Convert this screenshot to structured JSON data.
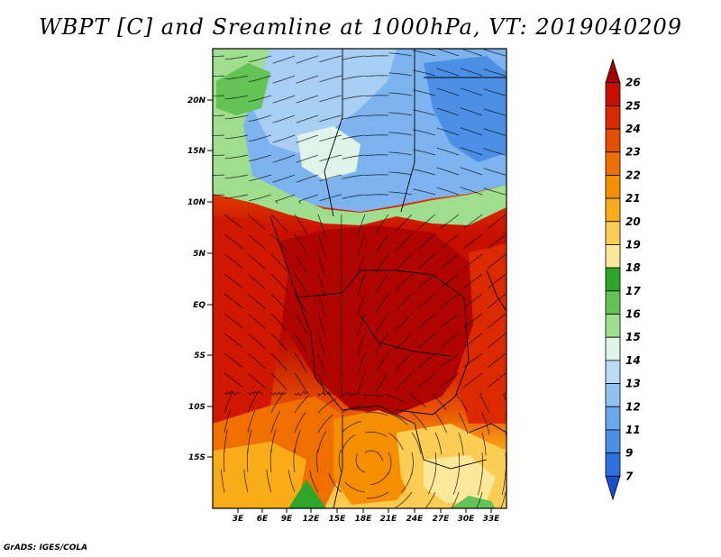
{
  "title": "WBPT [C] and Sreamline at 1000hPa, VT: 2019040209",
  "footer": "GrADS: IGES/COLA",
  "map": {
    "variable": "Wet-bulb potential temperature",
    "units": "C",
    "level": "1000hPa",
    "lat_ticks": [
      "20N",
      "15N",
      "10N",
      "5N",
      "EQ",
      "5S",
      "10S",
      "15S"
    ],
    "lon_ticks": [
      "3E",
      "6E",
      "9E",
      "12E",
      "15E",
      "18E",
      "21E",
      "24E",
      "27E",
      "30E",
      "33E"
    ]
  },
  "colorbar": {
    "labels": [
      "26",
      "25",
      "24",
      "23",
      "22",
      "21",
      "20",
      "19",
      "18",
      "17",
      "16",
      "15",
      "14",
      "13",
      "12",
      "11",
      "9",
      "7"
    ],
    "colors": [
      "#a50000",
      "#c81000",
      "#dc2a00",
      "#e84e00",
      "#ef7000",
      "#f58f00",
      "#f8ad18",
      "#fbcd55",
      "#fce89a",
      "#2fa62a",
      "#63c455",
      "#9fdd8f",
      "#e0f4ea",
      "#bcdcf6",
      "#92c2f1",
      "#6aa8ec",
      "#4b8fe6",
      "#2f72df",
      "#1550d0"
    ]
  }
}
